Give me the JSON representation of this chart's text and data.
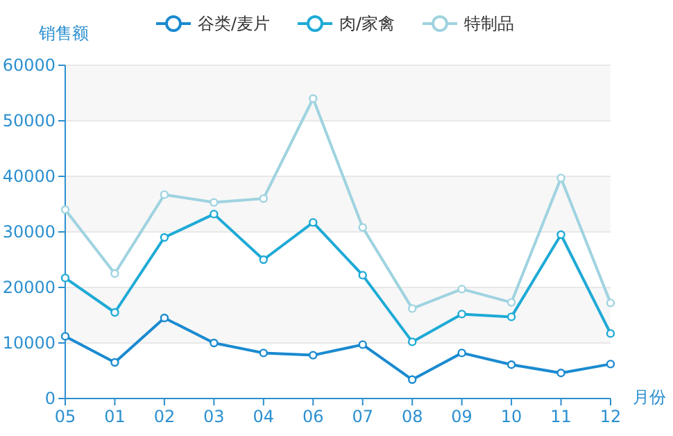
{
  "chart_data": {
    "type": "line",
    "xlabel": "月份",
    "ylabel": "销售额",
    "categories": [
      "05",
      "01",
      "02",
      "03",
      "04",
      "06",
      "07",
      "08",
      "09",
      "10",
      "11",
      "12"
    ],
    "series": [
      {
        "name": "谷类/麦片",
        "color": "#1a8ad0",
        "values": [
          11200,
          6500,
          14500,
          10000,
          8200,
          7800,
          9700,
          3400,
          8200,
          6100,
          4600,
          6200
        ]
      },
      {
        "name": "肉/家禽",
        "color": "#1eaad6",
        "values": [
          21700,
          15500,
          29000,
          33200,
          25000,
          31700,
          22200,
          10200,
          15200,
          14700,
          29500,
          11700
        ]
      },
      {
        "name": "特制品",
        "color": "#9fd3e0",
        "values": [
          34000,
          22500,
          36700,
          35300,
          36000,
          54000,
          30800,
          16200,
          19700,
          17300,
          39700,
          17200
        ]
      }
    ],
    "ylim": [
      0,
      60000
    ],
    "yticks": [
      0,
      10000,
      20000,
      30000,
      40000,
      50000,
      60000
    ],
    "bands": [
      {
        "axis": "y",
        "from": 10000,
        "to": 20000,
        "color": "#f7f7f7"
      },
      {
        "axis": "y",
        "from": 30000,
        "to": 40000,
        "color": "#f7f7f7"
      },
      {
        "axis": "y",
        "from": 50000,
        "to": 60000,
        "color": "#f7f7f7"
      }
    ],
    "grid": "y",
    "legend": "top",
    "marker": "circle",
    "line_style": "solid"
  }
}
